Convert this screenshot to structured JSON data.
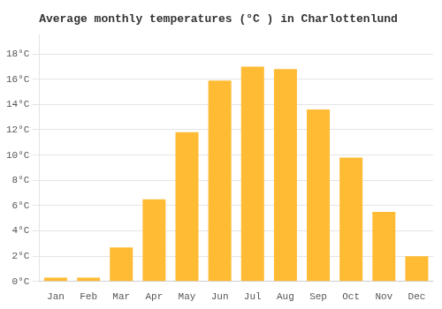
{
  "chart_data": {
    "type": "bar",
    "title": "Average monthly temperatures (°C ) in Charlottenlund",
    "categories": [
      "Jan",
      "Feb",
      "Mar",
      "Apr",
      "May",
      "Jun",
      "Jul",
      "Aug",
      "Sep",
      "Oct",
      "Nov",
      "Dec"
    ],
    "values": [
      0.3,
      0.3,
      2.7,
      6.5,
      11.8,
      15.9,
      17.0,
      16.8,
      13.6,
      9.8,
      5.5,
      2.0
    ],
    "color": "#FFBB33",
    "ylim": [
      0,
      19.5
    ],
    "yticks": [
      {
        "value": 0,
        "label": "0°C"
      },
      {
        "value": 2,
        "label": "2°C"
      },
      {
        "value": 4,
        "label": "4°C"
      },
      {
        "value": 6,
        "label": "6°C"
      },
      {
        "value": 8,
        "label": "8°C"
      },
      {
        "value": 10,
        "label": "10°C"
      },
      {
        "value": 12,
        "label": "12°C"
      },
      {
        "value": 14,
        "label": "14°C"
      },
      {
        "value": 16,
        "label": "16°C"
      },
      {
        "value": 18,
        "label": "18°C"
      }
    ],
    "grid": true
  }
}
